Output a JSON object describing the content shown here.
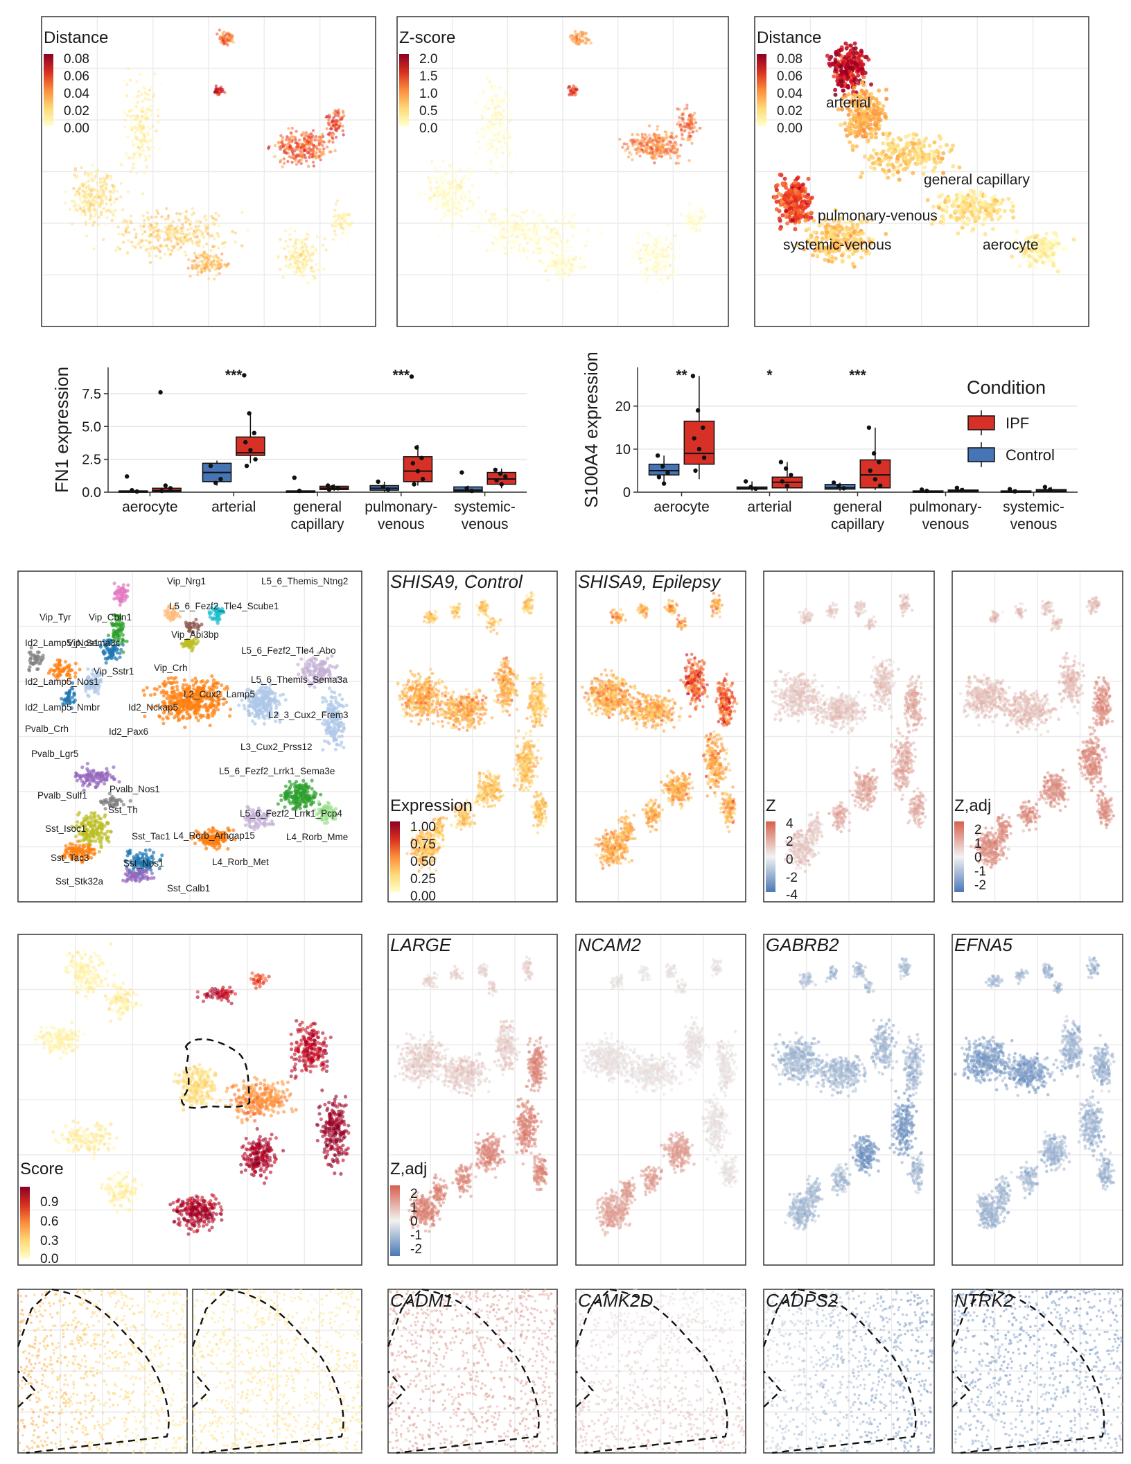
{
  "colors": {
    "ylorrd": [
      "#fff7bc",
      "#fee391",
      "#fec44f",
      "#fe9929",
      "#ec7014",
      "#cc4c02",
      "#990000"
    ],
    "diverging_red": "#d6604d",
    "diverging_blue": "#4a78b5",
    "ipf": "#d73027",
    "control": "#4575b4",
    "frame": "#333333",
    "grid": "#e5e5e5"
  },
  "row1": {
    "panels": [
      {
        "legend_title": "Distance",
        "legend_ticks": [
          "0.08",
          "0.06",
          "0.04",
          "0.02",
          "0.00"
        ]
      },
      {
        "legend_title": "Z-score",
        "legend_ticks": [
          "2.0",
          "1.5",
          "1.0",
          "0.5",
          "0.0"
        ]
      },
      {
        "legend_title": "Distance",
        "legend_ticks": [
          "0.08",
          "0.06",
          "0.04",
          "0.02",
          "0.00"
        ],
        "labels": [
          "arterial",
          "general capillary",
          "pulmonary-venous",
          "systemic-venous",
          "aerocyte"
        ]
      }
    ]
  },
  "row4": {
    "gene_panels": [
      {
        "title": "LARGE",
        "palette": "red"
      },
      {
        "title": "NCAM2",
        "palette": "red"
      },
      {
        "title": "GABRB2",
        "palette": "blue"
      },
      {
        "title": "EFNA5",
        "palette": "blue"
      }
    ],
    "score_legend": {
      "title": "Score",
      "ticks": [
        "0.9",
        "0.6",
        "0.3",
        "0.0"
      ]
    },
    "zadj_legend": {
      "title": "Z,adj",
      "ticks": [
        "2",
        "1",
        "0",
        "-1",
        "-2"
      ]
    }
  },
  "row3": {
    "cluster_labels": [
      "Vip_Nrg1",
      "L5_6_Themis_Ntng2",
      "Vip_Tyr",
      "Vip_Cbln1",
      "L5_6_Fezf2_Tle4_Scube1",
      "Id2_Lamp5_Nos1",
      "Vip_Sema3c",
      "Vip_Abi3bp",
      "L5_6_Fezf2_Tle4_Abo",
      "Vip_Sstr1",
      "Vip_Crh",
      "Id2_Lamp5_Nos1",
      "L5_6_Themis_Sema3a",
      "L2_Cux2_Lamp5",
      "Id2_Lamp5_Nmbr",
      "Id2_Nckap5",
      "L2_3_Cux2_Frem3",
      "Id2_Pax6",
      "Pvalb_Crh",
      "L3_Cux2_Prss12",
      "Pvalb_Lgr5",
      "L5_6_Fezf2_Lrrk1_Sema3e",
      "Pvalb_Nos1",
      "Pvalb_Sulf1",
      "Sst_Th",
      "L5_6_Fezf2_Lrrk1_Pcp4",
      "Sst_Isoc1",
      "Sst_Tac1",
      "L4_Rorb_Arhgap15",
      "L4_Rorb_Mme",
      "Sst_Tac3",
      "Sst_Nos1",
      "L4_Rorb_Met",
      "Sst_Stk32a",
      "Sst_Calb1"
    ],
    "cluster_colors": [
      "#e377c2",
      "#17becf",
      "#ff7f0e",
      "#1f77b4",
      "#2ca02c",
      "#9467bd",
      "#8c564b",
      "#bcbd22",
      "#7f7f7f",
      "#aec7e8",
      "#98df8a",
      "#ffbb78",
      "#c5b0d5"
    ],
    "panels": [
      {
        "title": "SHISA9, Control"
      },
      {
        "title": "SHISA9, Epilepsy"
      },
      {
        "title": ""
      },
      {
        "title": ""
      }
    ],
    "expr_legend": {
      "title": "Expression",
      "ticks": [
        "1.00",
        "0.75",
        "0.50",
        "0.25",
        "0.00"
      ]
    },
    "z_legend": {
      "title": "Z",
      "ticks": [
        "4",
        "2",
        "0",
        "-2",
        "-4"
      ]
    },
    "zadj_legend": {
      "title": "Z,adj",
      "ticks": [
        "2",
        "1",
        "0",
        "-1",
        "-2"
      ]
    }
  },
  "row5": {
    "gene_panels": [
      {
        "title": "CADM1",
        "palette": "red"
      },
      {
        "title": "CAMK2D",
        "palette": "red"
      },
      {
        "title": "CADPS2",
        "palette": "blue"
      },
      {
        "title": "NTRK2",
        "palette": "blue"
      }
    ]
  },
  "chart_data": [
    {
      "type": "scatter",
      "role": "umap",
      "legend": {
        "title": "Distance",
        "ticks": [
          0.08,
          0.06,
          0.04,
          0.02,
          0.0
        ],
        "range": [
          0,
          0.08
        ]
      }
    },
    {
      "type": "scatter",
      "role": "umap",
      "legend": {
        "title": "Z-score",
        "ticks": [
          2.0,
          1.5,
          1.0,
          0.5,
          0.0
        ],
        "range": [
          0,
          2.0
        ]
      }
    },
    {
      "type": "scatter",
      "role": "umap",
      "legend": {
        "title": "Distance",
        "ticks": [
          0.08,
          0.06,
          0.04,
          0.02,
          0.0
        ]
      },
      "annotations": [
        "arterial",
        "general capillary",
        "pulmonary-venous",
        "systemic-venous",
        "aerocyte"
      ]
    },
    {
      "type": "box",
      "ylabel": "FN1 expression",
      "categories": [
        "aerocyte",
        "arterial",
        "general capillary",
        "pulmonary-venous",
        "systemic-venous"
      ],
      "yticks": [
        "0.0",
        "2.5",
        "5.0",
        "7.5"
      ],
      "ylim": [
        0,
        9.5
      ],
      "significance": [
        "",
        "***",
        "",
        "***",
        ""
      ],
      "series": [
        {
          "name": "Control",
          "boxes": [
            [
              0.0,
              0.02,
              0.05,
              0.1,
              0.2
            ],
            [
              0.5,
              0.8,
              1.5,
              2.2,
              2.4
            ],
            [
              0.0,
              0.02,
              0.05,
              0.1,
              0.2
            ],
            [
              0.0,
              0.15,
              0.3,
              0.5,
              0.8
            ],
            [
              0.0,
              0.05,
              0.15,
              0.4,
              0.5
            ]
          ],
          "outliers": [
            [
              1.2,
              0.15,
              0.05
            ],
            [
              2.0,
              0.7,
              1.0
            ],
            [
              1.1,
              0.1
            ],
            [
              0.8,
              0.4,
              0.2
            ],
            [
              1.5,
              0.3,
              0.1
            ]
          ]
        },
        {
          "name": "IPF",
          "boxes": [
            [
              0.0,
              0.05,
              0.12,
              0.3,
              0.5
            ],
            [
              2.2,
              2.8,
              3.0,
              4.2,
              6.0
            ],
            [
              0.1,
              0.2,
              0.3,
              0.45,
              0.6
            ],
            [
              0.5,
              0.8,
              1.6,
              2.7,
              3.6
            ],
            [
              0.3,
              0.6,
              1.0,
              1.5,
              1.8
            ]
          ],
          "outliers": [
            [
              7.6,
              0.5,
              0.3,
              0.1
            ],
            [
              8.9,
              6.0,
              4.5,
              3.8,
              3.2,
              2.5,
              2.0
            ],
            [
              0.5,
              0.4,
              0.3,
              0.2
            ],
            [
              8.8,
              3.4,
              2.6,
              2.2,
              1.6,
              1.0,
              0.6
            ],
            [
              1.7,
              1.4,
              1.2,
              0.9,
              0.6
            ]
          ]
        }
      ]
    },
    {
      "type": "box",
      "ylabel": "S100A4 expression",
      "categories": [
        "aerocyte",
        "arterial",
        "general capillary",
        "pulmonary-venous",
        "systemic-venous"
      ],
      "yticks": [
        "0",
        "10",
        "20"
      ],
      "ylim": [
        0,
        29
      ],
      "significance": [
        "**",
        "*",
        "***",
        "",
        ""
      ],
      "legend": {
        "title": "Condition",
        "entries": [
          "IPF",
          "Control"
        ],
        "position": "top-right"
      },
      "series": [
        {
          "name": "Control",
          "boxes": [
            [
              2.0,
              4.0,
              5.0,
              6.5,
              8.5
            ],
            [
              0.3,
              0.7,
              0.9,
              1.2,
              2.5
            ],
            [
              0.3,
              0.7,
              1.0,
              1.8,
              2.2
            ],
            [
              0.0,
              0.1,
              0.2,
              0.3,
              0.6
            ],
            [
              0.0,
              0.1,
              0.2,
              0.3,
              0.7
            ]
          ],
          "outliers": [
            [
              8.5,
              6.0,
              4.5,
              3.5,
              2.0
            ],
            [
              2.5,
              1.2,
              0.8
            ],
            [
              2.2,
              1.5,
              0.9
            ],
            [
              0.6,
              0.3
            ],
            [
              0.7,
              0.2
            ]
          ]
        },
        {
          "name": "IPF",
          "boxes": [
            [
              3.0,
              6.5,
              9.0,
              16.5,
              27.0
            ],
            [
              0.3,
              1.0,
              2.3,
              3.5,
              7.0
            ],
            [
              0.5,
              1.0,
              4.0,
              7.5,
              15.0
            ],
            [
              0.0,
              0.1,
              0.3,
              0.5,
              1.0
            ],
            [
              0.0,
              0.1,
              0.3,
              0.6,
              1.2
            ]
          ],
          "outliers": [
            [
              27.0,
              19.0,
              15.0,
              12.5,
              10.0,
              8.0,
              5.0
            ],
            [
              7.0,
              5.5,
              4.0,
              2.5,
              1.5
            ],
            [
              15.0,
              9.0,
              7.0,
              5.0,
              3.0,
              1.5
            ],
            [
              1.0,
              0.5
            ],
            [
              1.2,
              0.6
            ]
          ]
        }
      ]
    }
  ]
}
